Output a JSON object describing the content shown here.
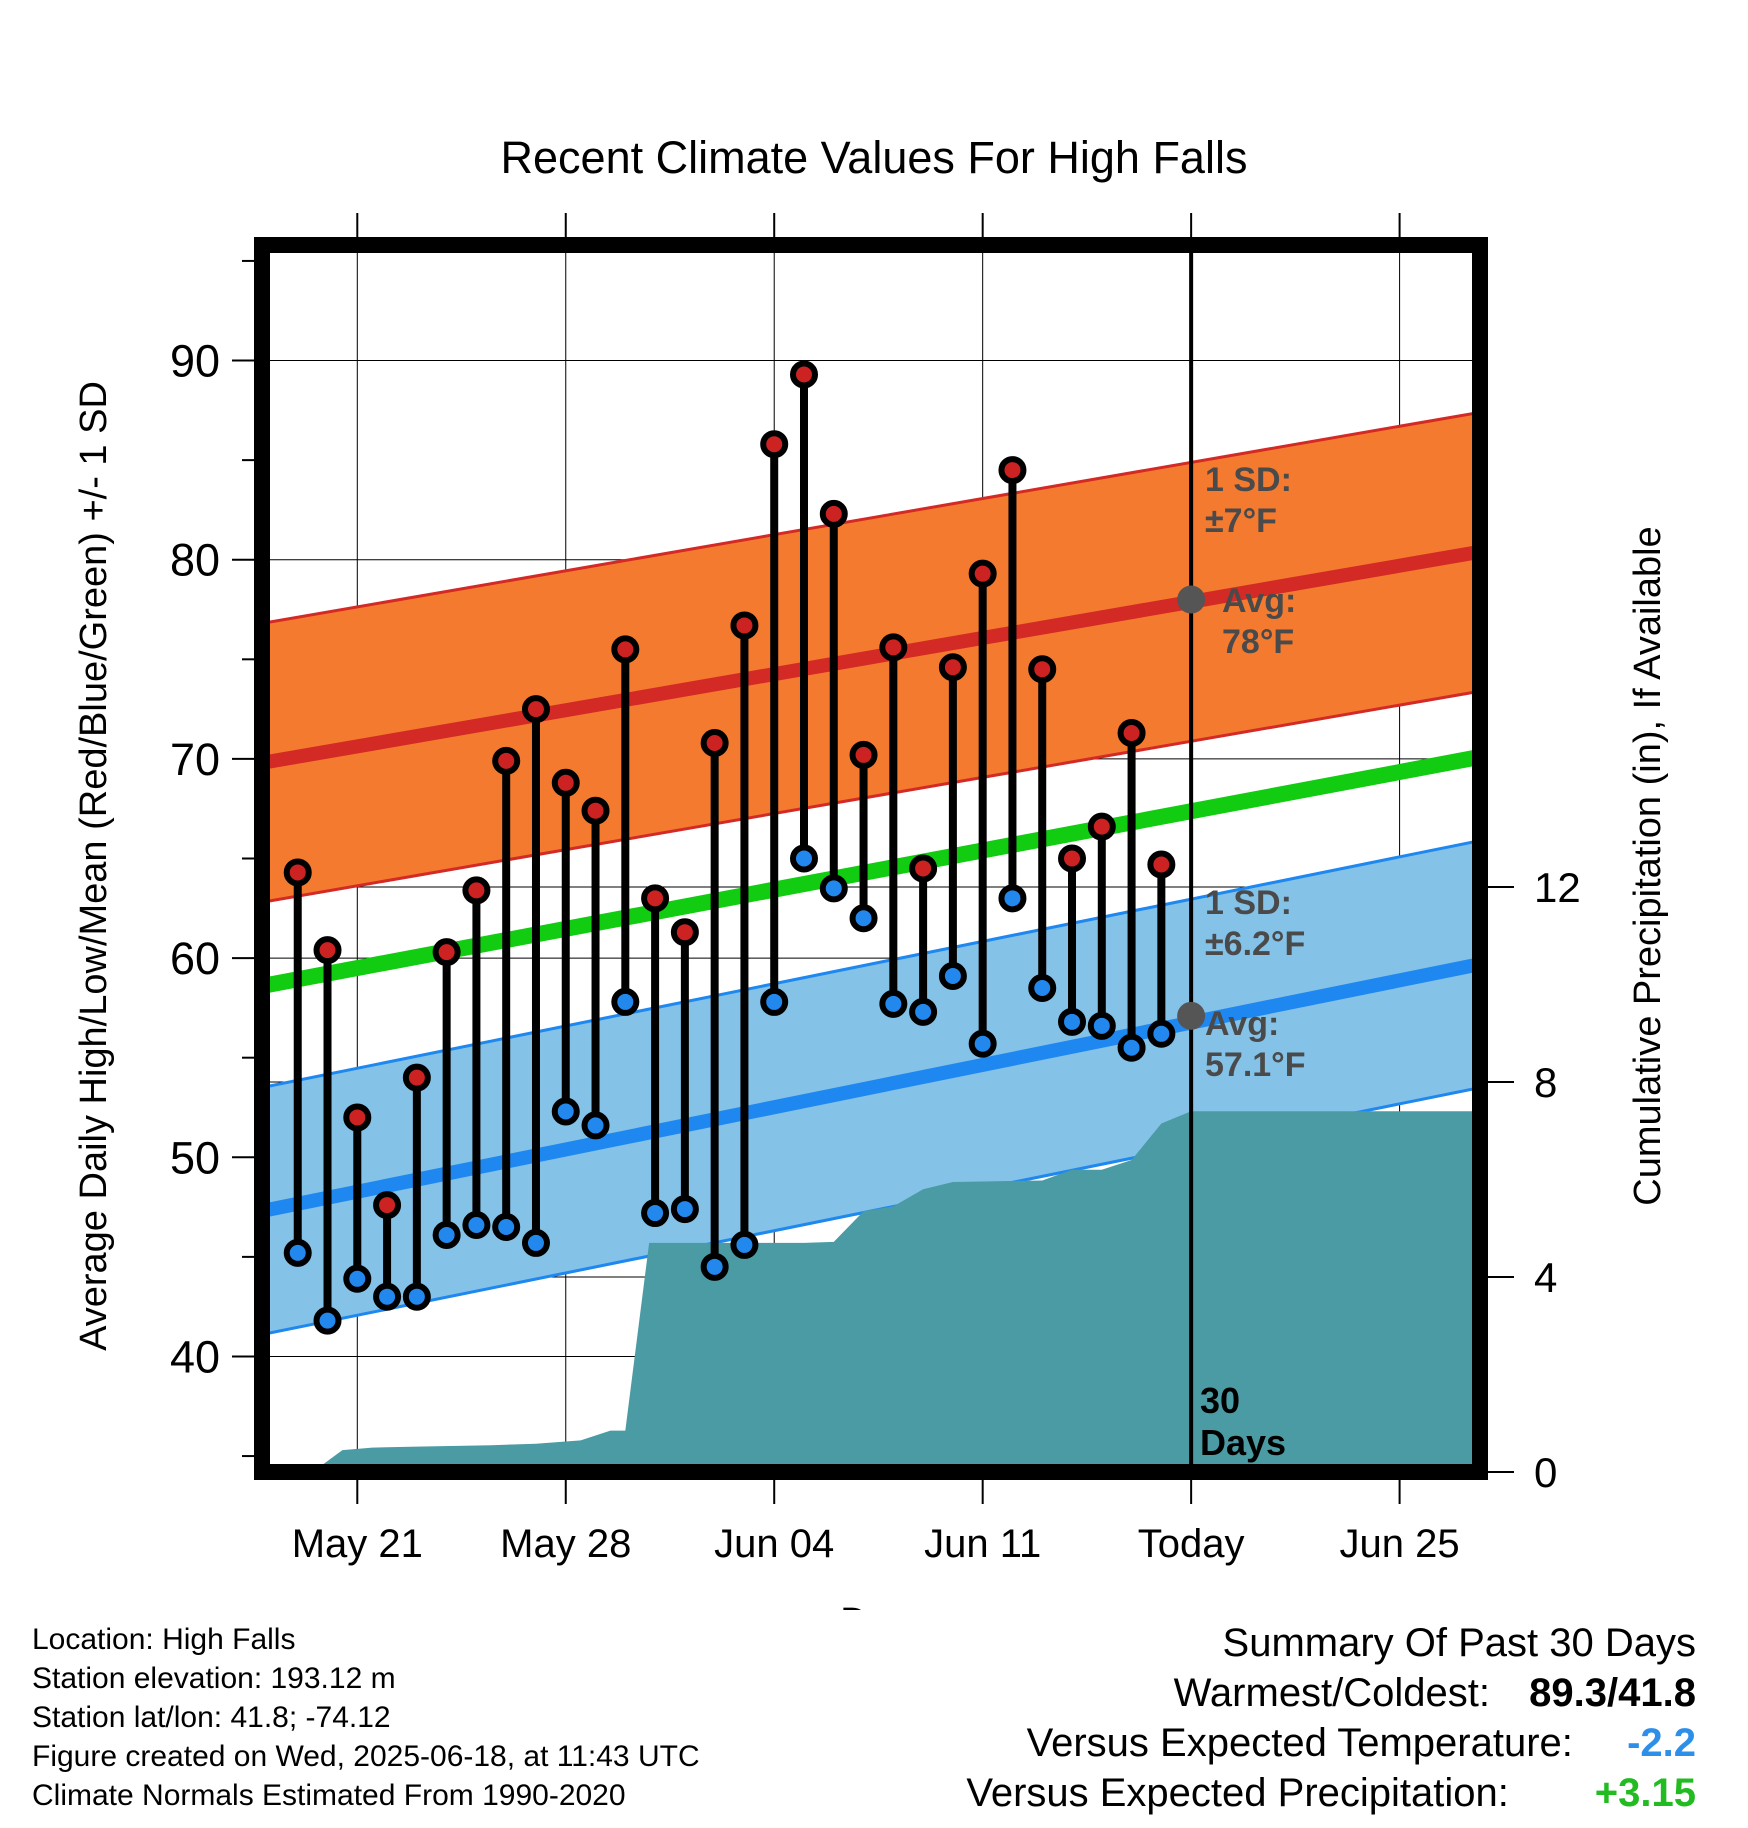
{
  "chart_data": {
    "type": "line",
    "title": "Recent Climate Values For High Falls",
    "xlabel": "Day",
    "ylabel": "Average Daily High/Low/Mean (Red/Blue/Green) +/- 1 SD",
    "y2label": "Cumulative Precipitation (in), If Available",
    "x_tick_labels": [
      "May 21",
      "May 28",
      "Jun 04",
      "Jun 11",
      "Today",
      "Jun 25"
    ],
    "x_tick_days": [
      -28,
      -21,
      -14,
      -7,
      0,
      7
    ],
    "x_range_days": [
      -31.2,
      9.7
    ],
    "ylim": [
      34.2,
      95.8
    ],
    "y_ticks": [
      40,
      50,
      60,
      70,
      80,
      90
    ],
    "y2lim": [
      0,
      12
    ],
    "y2_ticks": [
      0,
      4,
      8,
      12
    ],
    "grid": true,
    "today_marker": {
      "day": 0,
      "label_line1": "30",
      "label_line2": "Days"
    },
    "days": [
      -30,
      -29,
      -28,
      -27,
      -26,
      -25,
      -24,
      -23,
      -22,
      -21,
      -20,
      -19,
      -18,
      -17,
      -16,
      -15,
      -14,
      -13,
      -12,
      -11,
      -10,
      -9,
      -8,
      -7,
      -6,
      -5,
      -4,
      -3,
      -2,
      -1
    ],
    "series": [
      {
        "name": "High",
        "color": "#cc2222",
        "values": [
          64.3,
          60.4,
          52.0,
          47.6,
          54.0,
          60.3,
          63.4,
          69.9,
          72.5,
          68.8,
          67.4,
          75.5,
          63.0,
          61.3,
          70.8,
          76.7,
          85.8,
          89.3,
          82.3,
          70.2,
          75.6,
          64.5,
          74.6,
          79.3,
          84.5,
          74.5,
          65.0,
          66.6,
          71.3,
          64.7
        ]
      },
      {
        "name": "Low",
        "color": "#2288ee",
        "values": [
          45.2,
          41.8,
          43.9,
          43.0,
          43.0,
          46.1,
          46.6,
          46.5,
          45.7,
          52.3,
          51.6,
          57.8,
          47.2,
          47.4,
          44.5,
          45.6,
          57.8,
          65.0,
          63.5,
          62.0,
          57.7,
          57.3,
          59.1,
          55.7,
          63.0,
          58.5,
          56.8,
          56.6,
          55.5,
          56.2
        ]
      }
    ],
    "normal_high": {
      "start": 69.8,
      "end": 80.4,
      "sd": 7,
      "color": "#d42a25",
      "band_color": "#f47a30",
      "label_sd_line1": "1 SD:",
      "label_sd_line2": "±7°F",
      "label_avg_line1": "Avg:",
      "label_avg_line2": "78°F",
      "today_value": 78
    },
    "normal_low": {
      "start": 47.3,
      "end": 59.7,
      "sd": 6.2,
      "color": "#1e88f0",
      "band_color": "#85c2e8",
      "label_sd_line1": "1 SD:",
      "label_sd_line2": "±6.2°F",
      "label_avg_line1": "Avg:",
      "label_avg_line2": "57.1°F",
      "today_value": 57.1
    },
    "normal_mean": {
      "start": 58.6,
      "end": 70.1,
      "color": "#11cc11"
    },
    "precip": {
      "color": "#4a9ba4",
      "points": [
        [
          -29.5,
          0
        ],
        [
          -28.5,
          0.45
        ],
        [
          -27.5,
          0.5
        ],
        [
          -26,
          0.52
        ],
        [
          -23.5,
          0.55
        ],
        [
          -22,
          0.58
        ],
        [
          -20.5,
          0.65
        ],
        [
          -19.5,
          0.85
        ],
        [
          -19,
          0.85
        ],
        [
          -18.2,
          4.7
        ],
        [
          -13,
          4.7
        ],
        [
          -12,
          4.72
        ],
        [
          -11,
          5.35
        ],
        [
          -10,
          5.45
        ],
        [
          -9,
          5.8
        ],
        [
          -8,
          5.95
        ],
        [
          -5,
          5.98
        ],
        [
          -4,
          6.2
        ],
        [
          -3,
          6.2
        ],
        [
          -2,
          6.4
        ],
        [
          -1,
          7.15
        ],
        [
          0,
          7.4
        ],
        [
          9.7,
          7.4
        ]
      ]
    }
  },
  "info": {
    "location": "Location: High Falls",
    "elevation": "Station elevation: 193.12 m",
    "latlon": "Station lat/lon: 41.8; -74.12",
    "created": "Figure created on Wed, 2025-06-18, at 11:43 UTC",
    "normals": "Climate Normals Estimated From 1990-2020"
  },
  "summary": {
    "title": "Summary Of Past 30 Days",
    "warmest_label": "Warmest/Coldest:",
    "warmest_value": "89.3",
    "coldest_value": "41.8",
    "temp_label": "Versus Expected Temperature:",
    "temp_value": "-2.2",
    "temp_color": "#2e8fe8",
    "precip_label": "Versus Expected Precipitation:",
    "precip_value": "+3.15",
    "precip_color": "#22bb22"
  }
}
